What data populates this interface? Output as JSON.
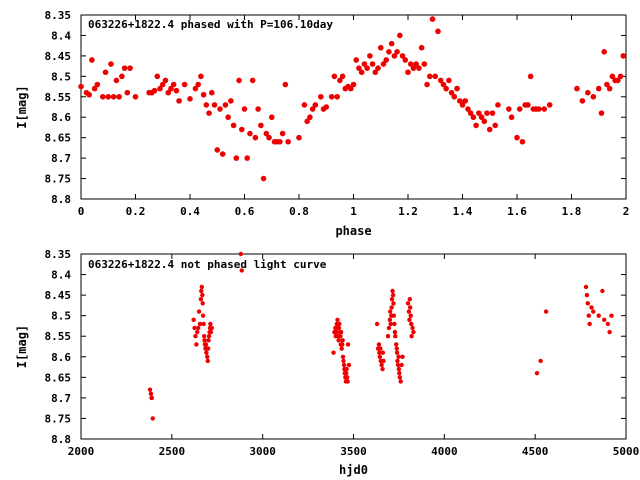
{
  "chart_data": [
    {
      "type": "scatter",
      "title": "063226+1822.4 phased with P=106.10day",
      "xlabel": "phase",
      "ylabel": "I[mag]",
      "xlim": [
        0,
        2
      ],
      "ylim": [
        8.35,
        8.8
      ],
      "y_inverted": true,
      "x_ticks": [
        0,
        0.2,
        0.4,
        0.6,
        0.8,
        1,
        1.2,
        1.4,
        1.6,
        1.8,
        2
      ],
      "x_tick_labels": [
        "0",
        "0.2",
        "0.4",
        "0.6",
        "0.8",
        "1",
        "1.2",
        "1.4",
        "1.6",
        "1.8",
        "2"
      ],
      "y_ticks": [
        8.35,
        8.4,
        8.45,
        8.5,
        8.55,
        8.6,
        8.65,
        8.7,
        8.75,
        8.8
      ],
      "y_tick_labels": [
        "8.35",
        "8.4",
        "8.45",
        "8.5",
        "8.55",
        "8.6",
        "8.65",
        "8.7",
        "8.75",
        "8.8"
      ],
      "grid": false,
      "marker_color": "#ee0000",
      "points": [
        [
          0.0,
          8.525
        ],
        [
          0.02,
          8.54
        ],
        [
          0.03,
          8.545
        ],
        [
          0.04,
          8.46
        ],
        [
          0.05,
          8.53
        ],
        [
          0.06,
          8.52
        ],
        [
          0.08,
          8.55
        ],
        [
          0.09,
          8.49
        ],
        [
          0.1,
          8.55
        ],
        [
          0.11,
          8.47
        ],
        [
          0.12,
          8.55
        ],
        [
          0.13,
          8.51
        ],
        [
          0.14,
          8.55
        ],
        [
          0.15,
          8.5
        ],
        [
          0.16,
          8.48
        ],
        [
          0.17,
          8.54
        ],
        [
          0.18,
          8.48
        ],
        [
          0.2,
          8.55
        ],
        [
          0.25,
          8.54
        ],
        [
          0.26,
          8.54
        ],
        [
          0.27,
          8.535
        ],
        [
          0.28,
          8.5
        ],
        [
          0.29,
          8.53
        ],
        [
          0.3,
          8.52
        ],
        [
          0.31,
          8.51
        ],
        [
          0.32,
          8.54
        ],
        [
          0.33,
          8.53
        ],
        [
          0.34,
          8.52
        ],
        [
          0.35,
          8.535
        ],
        [
          0.36,
          8.56
        ],
        [
          0.38,
          8.52
        ],
        [
          0.4,
          8.555
        ],
        [
          0.42,
          8.53
        ],
        [
          0.43,
          8.52
        ],
        [
          0.44,
          8.5
        ],
        [
          0.45,
          8.545
        ],
        [
          0.46,
          8.57
        ],
        [
          0.47,
          8.59
        ],
        [
          0.48,
          8.54
        ],
        [
          0.49,
          8.57
        ],
        [
          0.5,
          8.68
        ],
        [
          0.51,
          8.58
        ],
        [
          0.52,
          8.69
        ],
        [
          0.53,
          8.57
        ],
        [
          0.54,
          8.6
        ],
        [
          0.55,
          8.56
        ],
        [
          0.56,
          8.62
        ],
        [
          0.57,
          8.7
        ],
        [
          0.58,
          8.51
        ],
        [
          0.59,
          8.63
        ],
        [
          0.6,
          8.58
        ],
        [
          0.61,
          8.7
        ],
        [
          0.62,
          8.64
        ],
        [
          0.63,
          8.51
        ],
        [
          0.64,
          8.65
        ],
        [
          0.65,
          8.58
        ],
        [
          0.66,
          8.62
        ],
        [
          0.67,
          8.75
        ],
        [
          0.68,
          8.64
        ],
        [
          0.69,
          8.65
        ],
        [
          0.7,
          8.6
        ],
        [
          0.71,
          8.66
        ],
        [
          0.72,
          8.66
        ],
        [
          0.73,
          8.66
        ],
        [
          0.74,
          8.64
        ],
        [
          0.75,
          8.52
        ],
        [
          0.76,
          8.66
        ],
        [
          0.8,
          8.65
        ],
        [
          0.82,
          8.57
        ],
        [
          0.83,
          8.61
        ],
        [
          0.84,
          8.6
        ],
        [
          0.85,
          8.58
        ],
        [
          0.86,
          8.57
        ],
        [
          0.88,
          8.55
        ],
        [
          0.89,
          8.58
        ],
        [
          0.9,
          8.575
        ],
        [
          0.92,
          8.55
        ],
        [
          0.93,
          8.5
        ],
        [
          0.94,
          8.55
        ],
        [
          0.95,
          8.51
        ],
        [
          0.96,
          8.5
        ],
        [
          0.97,
          8.53
        ],
        [
          0.98,
          8.525
        ],
        [
          0.99,
          8.53
        ],
        [
          1.0,
          8.52
        ],
        [
          1.01,
          8.46
        ],
        [
          1.02,
          8.48
        ],
        [
          1.03,
          8.49
        ],
        [
          1.04,
          8.47
        ],
        [
          1.05,
          8.48
        ],
        [
          1.06,
          8.45
        ],
        [
          1.07,
          8.47
        ],
        [
          1.08,
          8.49
        ],
        [
          1.09,
          8.48
        ],
        [
          1.1,
          8.43
        ],
        [
          1.11,
          8.47
        ],
        [
          1.12,
          8.46
        ],
        [
          1.13,
          8.44
        ],
        [
          1.14,
          8.42
        ],
        [
          1.15,
          8.45
        ],
        [
          1.16,
          8.44
        ],
        [
          1.17,
          8.4
        ],
        [
          1.18,
          8.45
        ],
        [
          1.19,
          8.46
        ],
        [
          1.2,
          8.49
        ],
        [
          1.21,
          8.47
        ],
        [
          1.22,
          8.48
        ],
        [
          1.23,
          8.47
        ],
        [
          1.24,
          8.48
        ],
        [
          1.25,
          8.43
        ],
        [
          1.26,
          8.47
        ],
        [
          1.27,
          8.52
        ],
        [
          1.28,
          8.5
        ],
        [
          1.29,
          8.36
        ],
        [
          1.3,
          8.5
        ],
        [
          1.31,
          8.39
        ],
        [
          1.32,
          8.51
        ],
        [
          1.33,
          8.52
        ],
        [
          1.34,
          8.53
        ],
        [
          1.35,
          8.51
        ],
        [
          1.36,
          8.54
        ],
        [
          1.37,
          8.55
        ],
        [
          1.38,
          8.53
        ],
        [
          1.39,
          8.56
        ],
        [
          1.4,
          8.57
        ],
        [
          1.41,
          8.56
        ],
        [
          1.42,
          8.58
        ],
        [
          1.43,
          8.59
        ],
        [
          1.44,
          8.6
        ],
        [
          1.45,
          8.62
        ],
        [
          1.46,
          8.59
        ],
        [
          1.47,
          8.6
        ],
        [
          1.48,
          8.61
        ],
        [
          1.49,
          8.59
        ],
        [
          1.5,
          8.63
        ],
        [
          1.51,
          8.59
        ],
        [
          1.52,
          8.62
        ],
        [
          1.53,
          8.57
        ],
        [
          1.57,
          8.58
        ],
        [
          1.58,
          8.6
        ],
        [
          1.6,
          8.65
        ],
        [
          1.61,
          8.58
        ],
        [
          1.62,
          8.66
        ],
        [
          1.63,
          8.57
        ],
        [
          1.64,
          8.57
        ],
        [
          1.65,
          8.5
        ],
        [
          1.66,
          8.58
        ],
        [
          1.67,
          8.58
        ],
        [
          1.68,
          8.58
        ],
        [
          1.7,
          8.58
        ],
        [
          1.72,
          8.57
        ],
        [
          1.82,
          8.53
        ],
        [
          1.84,
          8.56
        ],
        [
          1.86,
          8.54
        ],
        [
          1.88,
          8.55
        ],
        [
          1.9,
          8.53
        ],
        [
          1.91,
          8.59
        ],
        [
          1.92,
          8.44
        ],
        [
          1.93,
          8.52
        ],
        [
          1.94,
          8.53
        ],
        [
          1.95,
          8.5
        ],
        [
          1.96,
          8.51
        ],
        [
          1.97,
          8.51
        ],
        [
          1.98,
          8.5
        ],
        [
          1.99,
          8.45
        ]
      ]
    },
    {
      "type": "scatter",
      "title": "063226+1822.4 not phased light curve",
      "xlabel": "hjd0",
      "ylabel": "I[mag]",
      "xlim": [
        2000,
        5000
      ],
      "ylim": [
        8.35,
        8.8
      ],
      "y_inverted": true,
      "x_ticks": [
        2000,
        2500,
        3000,
        3500,
        4000,
        4500,
        5000
      ],
      "x_tick_labels": [
        "2000",
        "2500",
        "3000",
        "3500",
        "4000",
        "4500",
        "5000"
      ],
      "y_ticks": [
        8.35,
        8.4,
        8.45,
        8.5,
        8.55,
        8.6,
        8.65,
        8.7,
        8.75,
        8.8
      ],
      "y_tick_labels": [
        "8.35",
        "8.4",
        "8.45",
        "8.5",
        "8.55",
        "8.6",
        "8.65",
        "8.7",
        "8.75",
        "8.8"
      ],
      "grid": false,
      "marker_color": "#ee0000",
      "points": [
        [
          2380,
          8.68
        ],
        [
          2385,
          8.69
        ],
        [
          2388,
          8.7
        ],
        [
          2390,
          8.7
        ],
        [
          2395,
          8.75
        ],
        [
          2620,
          8.51
        ],
        [
          2625,
          8.53
        ],
        [
          2630,
          8.55
        ],
        [
          2635,
          8.57
        ],
        [
          2640,
          8.54
        ],
        [
          2645,
          8.53
        ],
        [
          2650,
          8.49
        ],
        [
          2655,
          8.52
        ],
        [
          2660,
          8.46
        ],
        [
          2662,
          8.44
        ],
        [
          2665,
          8.43
        ],
        [
          2668,
          8.45
        ],
        [
          2670,
          8.47
        ],
        [
          2672,
          8.5
        ],
        [
          2675,
          8.52
        ],
        [
          2678,
          8.55
        ],
        [
          2680,
          8.56
        ],
        [
          2682,
          8.57
        ],
        [
          2685,
          8.58
        ],
        [
          2688,
          8.57
        ],
        [
          2690,
          8.59
        ],
        [
          2692,
          8.58
        ],
        [
          2695,
          8.6
        ],
        [
          2698,
          8.61
        ],
        [
          2700,
          8.58
        ],
        [
          2702,
          8.56
        ],
        [
          2705,
          8.55
        ],
        [
          2708,
          8.54
        ],
        [
          2710,
          8.53
        ],
        [
          2712,
          8.52
        ],
        [
          2715,
          8.54
        ],
        [
          2718,
          8.53
        ],
        [
          2720,
          8.53
        ],
        [
          2880,
          8.35
        ],
        [
          2885,
          8.39
        ],
        [
          3390,
          8.59
        ],
        [
          3395,
          8.54
        ],
        [
          3400,
          8.53
        ],
        [
          3402,
          8.55
        ],
        [
          3405,
          8.54
        ],
        [
          3408,
          8.52
        ],
        [
          3410,
          8.53
        ],
        [
          3412,
          8.51
        ],
        [
          3415,
          8.55
        ],
        [
          3418,
          8.56
        ],
        [
          3420,
          8.53
        ],
        [
          3422,
          8.52
        ],
        [
          3425,
          8.54
        ],
        [
          3428,
          8.55
        ],
        [
          3430,
          8.57
        ],
        [
          3432,
          8.54
        ],
        [
          3435,
          8.58
        ],
        [
          3438,
          8.57
        ],
        [
          3440,
          8.56
        ],
        [
          3442,
          8.6
        ],
        [
          3445,
          8.61
        ],
        [
          3448,
          8.62
        ],
        [
          3450,
          8.63
        ],
        [
          3452,
          8.64
        ],
        [
          3455,
          8.65
        ],
        [
          3458,
          8.66
        ],
        [
          3460,
          8.64
        ],
        [
          3462,
          8.63
        ],
        [
          3465,
          8.65
        ],
        [
          3468,
          8.66
        ],
        [
          3470,
          8.57
        ],
        [
          3475,
          8.62
        ],
        [
          3630,
          8.52
        ],
        [
          3635,
          8.58
        ],
        [
          3640,
          8.57
        ],
        [
          3642,
          8.59
        ],
        [
          3645,
          8.6
        ],
        [
          3648,
          8.58
        ],
        [
          3650,
          8.61
        ],
        [
          3655,
          8.62
        ],
        [
          3660,
          8.63
        ],
        [
          3662,
          8.59
        ],
        [
          3665,
          8.61
        ],
        [
          3690,
          8.55
        ],
        [
          3695,
          8.53
        ],
        [
          3700,
          8.51
        ],
        [
          3702,
          8.49
        ],
        [
          3705,
          8.52
        ],
        [
          3708,
          8.5
        ],
        [
          3710,
          8.48
        ],
        [
          3712,
          8.46
        ],
        [
          3715,
          8.44
        ],
        [
          3718,
          8.45
        ],
        [
          3720,
          8.47
        ],
        [
          3722,
          8.5
        ],
        [
          3725,
          8.52
        ],
        [
          3728,
          8.54
        ],
        [
          3730,
          8.55
        ],
        [
          3735,
          8.57
        ],
        [
          3738,
          8.58
        ],
        [
          3740,
          8.59
        ],
        [
          3742,
          8.61
        ],
        [
          3745,
          8.62
        ],
        [
          3748,
          8.6
        ],
        [
          3750,
          8.63
        ],
        [
          3752,
          8.64
        ],
        [
          3755,
          8.65
        ],
        [
          3760,
          8.66
        ],
        [
          3765,
          8.62
        ],
        [
          3770,
          8.6
        ],
        [
          3800,
          8.47
        ],
        [
          3805,
          8.49
        ],
        [
          3808,
          8.51
        ],
        [
          3810,
          8.46
        ],
        [
          3812,
          8.48
        ],
        [
          3815,
          8.5
        ],
        [
          3818,
          8.52
        ],
        [
          3820,
          8.55
        ],
        [
          3825,
          8.53
        ],
        [
          3830,
          8.54
        ],
        [
          4510,
          8.64
        ],
        [
          4530,
          8.61
        ],
        [
          4560,
          8.49
        ],
        [
          4780,
          8.43
        ],
        [
          4785,
          8.45
        ],
        [
          4790,
          8.47
        ],
        [
          4795,
          8.5
        ],
        [
          4800,
          8.52
        ],
        [
          4810,
          8.48
        ],
        [
          4820,
          8.49
        ],
        [
          4850,
          8.5
        ],
        [
          4870,
          8.44
        ],
        [
          4880,
          8.51
        ],
        [
          4900,
          8.52
        ],
        [
          4910,
          8.54
        ],
        [
          4920,
          8.5
        ]
      ]
    }
  ]
}
